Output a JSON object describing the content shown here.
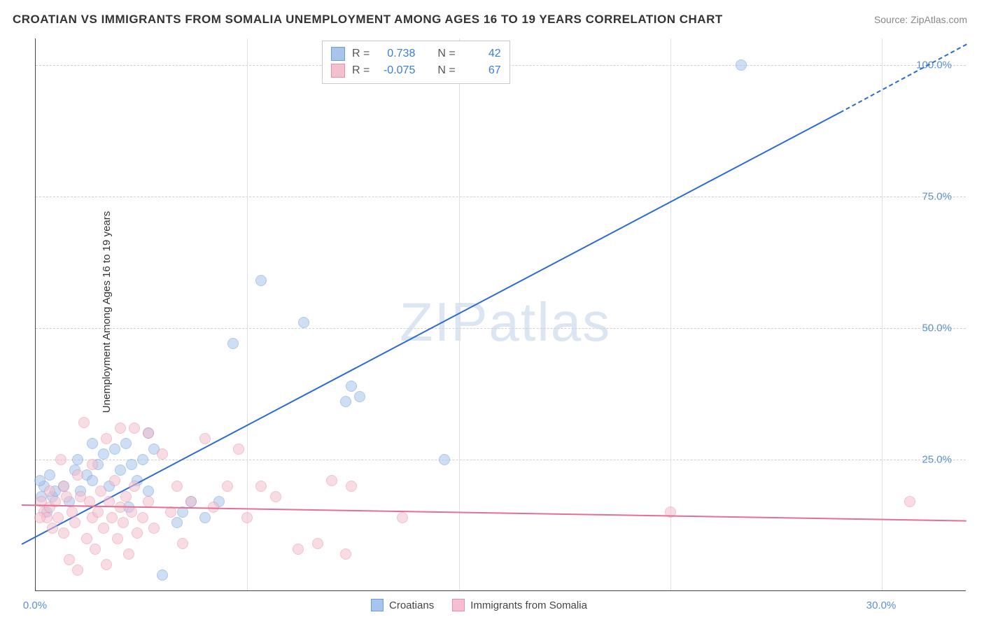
{
  "title": "CROATIAN VS IMMIGRANTS FROM SOMALIA UNEMPLOYMENT AMONG AGES 16 TO 19 YEARS CORRELATION CHART",
  "source_prefix": "Source: ",
  "source": "ZipAtlas.com",
  "ylabel": "Unemployment Among Ages 16 to 19 years",
  "watermark_zip": "ZIP",
  "watermark_atlas": "atlas",
  "chart": {
    "type": "scatter",
    "xlim": [
      0,
      33
    ],
    "ylim": [
      0,
      105
    ],
    "x_ticks": [
      0,
      30
    ],
    "x_tick_labels": [
      "0.0%",
      "30.0%"
    ],
    "x_grid": [
      7.5,
      15,
      22.5,
      30
    ],
    "y_ticks": [
      25,
      50,
      75,
      100
    ],
    "y_tick_labels": [
      "25.0%",
      "50.0%",
      "75.0%",
      "100.0%"
    ],
    "background_color": "#ffffff",
    "grid_color": "#d8d8d8",
    "axis_color": "#444444",
    "point_radius": 8,
    "point_opacity": 0.55,
    "series": [
      {
        "name": "Croatians",
        "fill": "#a7c4ea",
        "stroke": "#6d9cdc",
        "line_color": "#2e6bd0",
        "R": "0.738",
        "N": "42",
        "trend": {
          "x1": -0.5,
          "y1": 9,
          "x2": 28.5,
          "y2": 91
        },
        "trend_dashed": {
          "x1": 28.5,
          "y1": 91,
          "x2": 33,
          "y2": 104
        },
        "points": [
          [
            0.2,
            18
          ],
          [
            0.3,
            20
          ],
          [
            0.4,
            15
          ],
          [
            0.5,
            22
          ],
          [
            0.6,
            18
          ],
          [
            0.7,
            19
          ],
          [
            1.0,
            20
          ],
          [
            1.2,
            17
          ],
          [
            1.4,
            23
          ],
          [
            1.5,
            25
          ],
          [
            1.6,
            19
          ],
          [
            1.8,
            22
          ],
          [
            2.0,
            28
          ],
          [
            2.0,
            21
          ],
          [
            2.2,
            24
          ],
          [
            2.4,
            26
          ],
          [
            2.6,
            20
          ],
          [
            2.8,
            27
          ],
          [
            3.0,
            23
          ],
          [
            3.2,
            28
          ],
          [
            3.3,
            16
          ],
          [
            3.4,
            24
          ],
          [
            3.6,
            21
          ],
          [
            3.8,
            25
          ],
          [
            4.0,
            30
          ],
          [
            4.0,
            19
          ],
          [
            4.2,
            27
          ],
          [
            4.5,
            3
          ],
          [
            5.0,
            13
          ],
          [
            5.2,
            15
          ],
          [
            5.5,
            17
          ],
          [
            6.0,
            14
          ],
          [
            6.5,
            17
          ],
          [
            7.0,
            47
          ],
          [
            8.0,
            59
          ],
          [
            9.5,
            51
          ],
          [
            11.0,
            36
          ],
          [
            11.2,
            39
          ],
          [
            11.5,
            37
          ],
          [
            14.5,
            25
          ],
          [
            25.0,
            100
          ],
          [
            0.15,
            21
          ]
        ]
      },
      {
        "name": "Immigrants from Somalia",
        "fill": "#f4c0cf",
        "stroke": "#e88fa9",
        "line_color": "#e56f93",
        "R": "-0.075",
        "N": "67",
        "trend": {
          "x1": -0.5,
          "y1": 16.5,
          "x2": 33,
          "y2": 13.5
        },
        "points": [
          [
            0.2,
            17
          ],
          [
            0.3,
            15
          ],
          [
            0.4,
            14
          ],
          [
            0.5,
            19
          ],
          [
            0.5,
            16
          ],
          [
            0.6,
            12
          ],
          [
            0.7,
            17
          ],
          [
            0.8,
            14
          ],
          [
            0.9,
            25
          ],
          [
            1.0,
            20
          ],
          [
            1.0,
            11
          ],
          [
            1.1,
            18
          ],
          [
            1.2,
            6
          ],
          [
            1.3,
            15
          ],
          [
            1.4,
            13
          ],
          [
            1.5,
            22
          ],
          [
            1.5,
            4
          ],
          [
            1.6,
            18
          ],
          [
            1.7,
            32
          ],
          [
            1.8,
            10
          ],
          [
            1.9,
            17
          ],
          [
            2.0,
            14
          ],
          [
            2.0,
            24
          ],
          [
            2.1,
            8
          ],
          [
            2.2,
            15
          ],
          [
            2.3,
            19
          ],
          [
            2.4,
            12
          ],
          [
            2.5,
            29
          ],
          [
            2.5,
            5
          ],
          [
            2.6,
            17
          ],
          [
            2.7,
            14
          ],
          [
            2.8,
            21
          ],
          [
            2.9,
            10
          ],
          [
            3.0,
            16
          ],
          [
            3.0,
            31
          ],
          [
            3.1,
            13
          ],
          [
            3.2,
            18
          ],
          [
            3.3,
            7
          ],
          [
            3.4,
            15
          ],
          [
            3.5,
            31
          ],
          [
            3.5,
            20
          ],
          [
            3.6,
            11
          ],
          [
            3.8,
            14
          ],
          [
            4.0,
            17
          ],
          [
            4.0,
            30
          ],
          [
            4.2,
            12
          ],
          [
            4.5,
            26
          ],
          [
            4.8,
            15
          ],
          [
            5.0,
            20
          ],
          [
            5.2,
            9
          ],
          [
            5.5,
            17
          ],
          [
            6.0,
            29
          ],
          [
            6.3,
            16
          ],
          [
            6.8,
            20
          ],
          [
            7.2,
            27
          ],
          [
            7.5,
            14
          ],
          [
            8.0,
            20
          ],
          [
            8.5,
            18
          ],
          [
            9.3,
            8
          ],
          [
            10.0,
            9
          ],
          [
            10.5,
            21
          ],
          [
            11.0,
            7
          ],
          [
            11.2,
            20
          ],
          [
            13.0,
            14
          ],
          [
            22.5,
            15
          ],
          [
            31.0,
            17
          ],
          [
            0.15,
            14
          ]
        ]
      }
    ]
  },
  "legend_series": [
    {
      "label": "Croatians",
      "fill": "#a7c4ea",
      "stroke": "#6d9cdc"
    },
    {
      "label": "Immigrants from Somalia",
      "fill": "#f4c0cf",
      "stroke": "#e88fa9"
    }
  ],
  "stat_R_label": "R =",
  "stat_N_label": "N ="
}
